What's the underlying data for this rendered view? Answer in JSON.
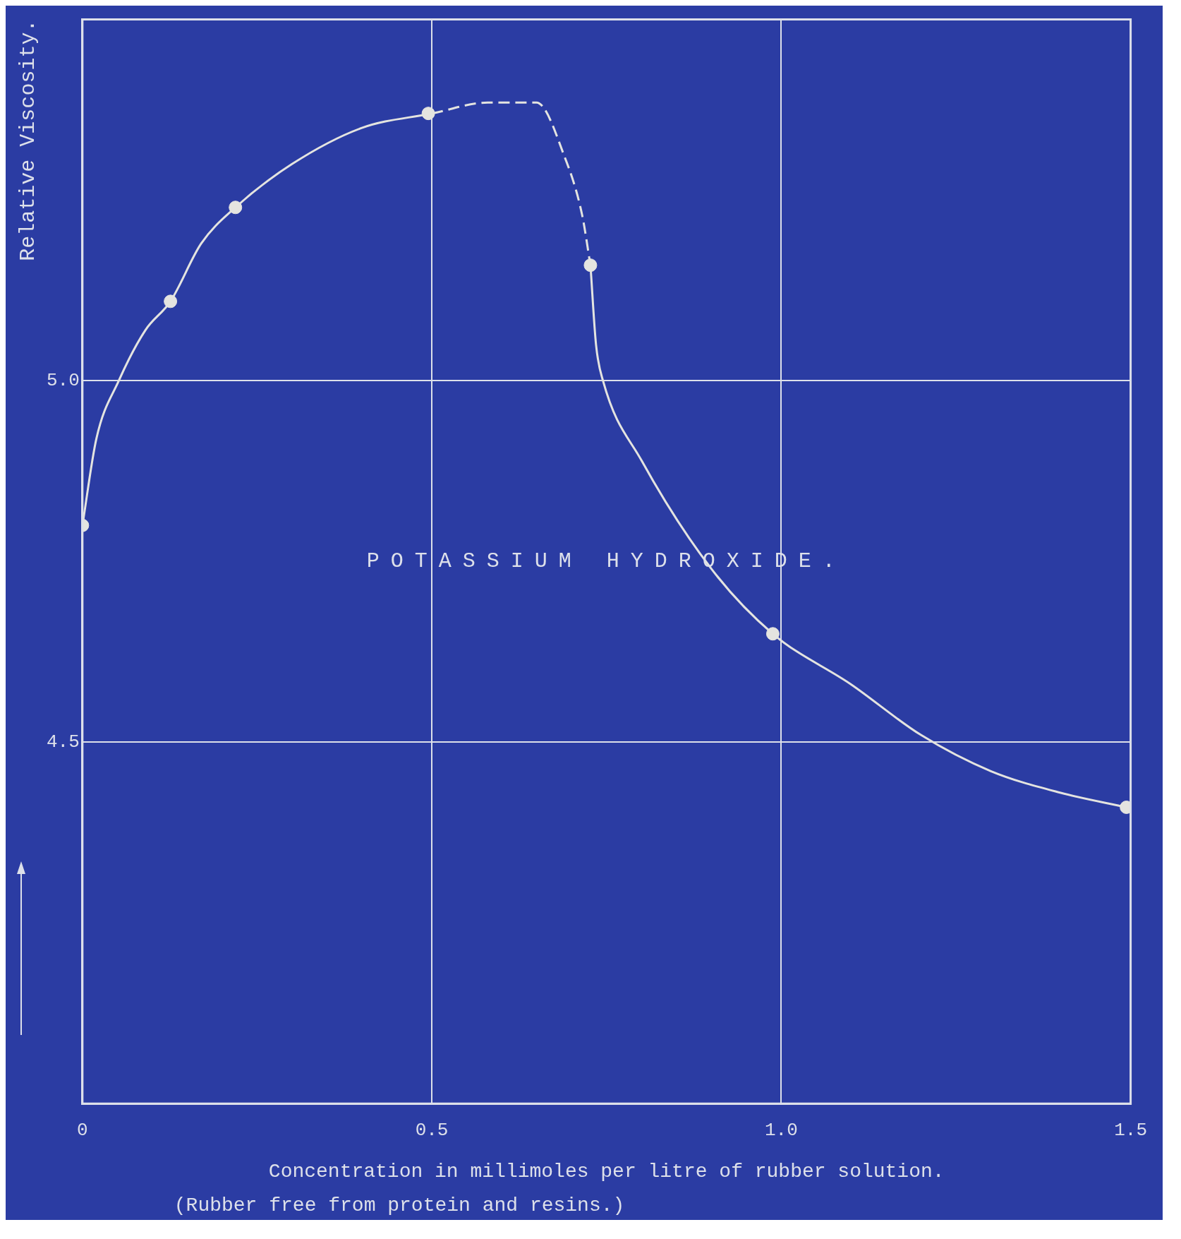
{
  "chart_data": {
    "type": "line",
    "xlabel": "Concentration in millimoles per litre of rubber solution.",
    "ylabel": "Relative Viscosity.",
    "annotations": [
      "POTASSIUM HYDROXIDE.",
      "(Rubber free from protein and resins.)"
    ],
    "xlim": [
      0,
      1.5
    ],
    "ylim": [
      4.0,
      5.5
    ],
    "xticks": [
      {
        "value": 0,
        "label": "0"
      },
      0.5,
      {
        "value": 1,
        "label": "1.0"
      },
      1.5
    ],
    "yticks": [
      4.5,
      {
        "value": 5,
        "label": "5.0"
      }
    ],
    "grid": true,
    "series": [
      {
        "type": "scatter",
        "marker": "circle",
        "color": "#e4e4e0",
        "x": [
          0,
          0.126,
          0.219,
          0.495,
          0.727,
          0.988,
          1.494
        ],
        "values": [
          4.8,
          5.11,
          5.24,
          5.37,
          5.16,
          4.65,
          4.41
        ]
      },
      {
        "marker": "none",
        "line_style": "solid",
        "color": "#e4e4e0",
        "x": [
          0,
          0.02,
          0.052,
          0.09,
          0.126,
          0.17,
          0.219,
          0.3,
          0.4,
          0.5
        ],
        "values": [
          4.8,
          4.92,
          5.0,
          5.07,
          5.11,
          5.19,
          5.24,
          5.3,
          5.35,
          5.37
        ]
      },
      {
        "marker": "none",
        "line_style": "dashed",
        "color": "#e4e4e0",
        "x": [
          0.5,
          0.58,
          0.65,
          0.69,
          0.715,
          0.727
        ],
        "values": [
          5.37,
          5.385,
          5.385,
          5.31,
          5.23,
          5.16
        ]
      },
      {
        "marker": "none",
        "line_style": "solid",
        "color": "#e4e4e0",
        "x": [
          0.727,
          0.735,
          0.745,
          0.8,
          0.9,
          0.988,
          1.1,
          1.2,
          1.3,
          1.4,
          1.494
        ],
        "values": [
          5.16,
          5.05,
          5.0,
          4.89,
          4.74,
          4.65,
          4.58,
          4.51,
          4.46,
          4.43,
          4.41
        ]
      }
    ]
  }
}
